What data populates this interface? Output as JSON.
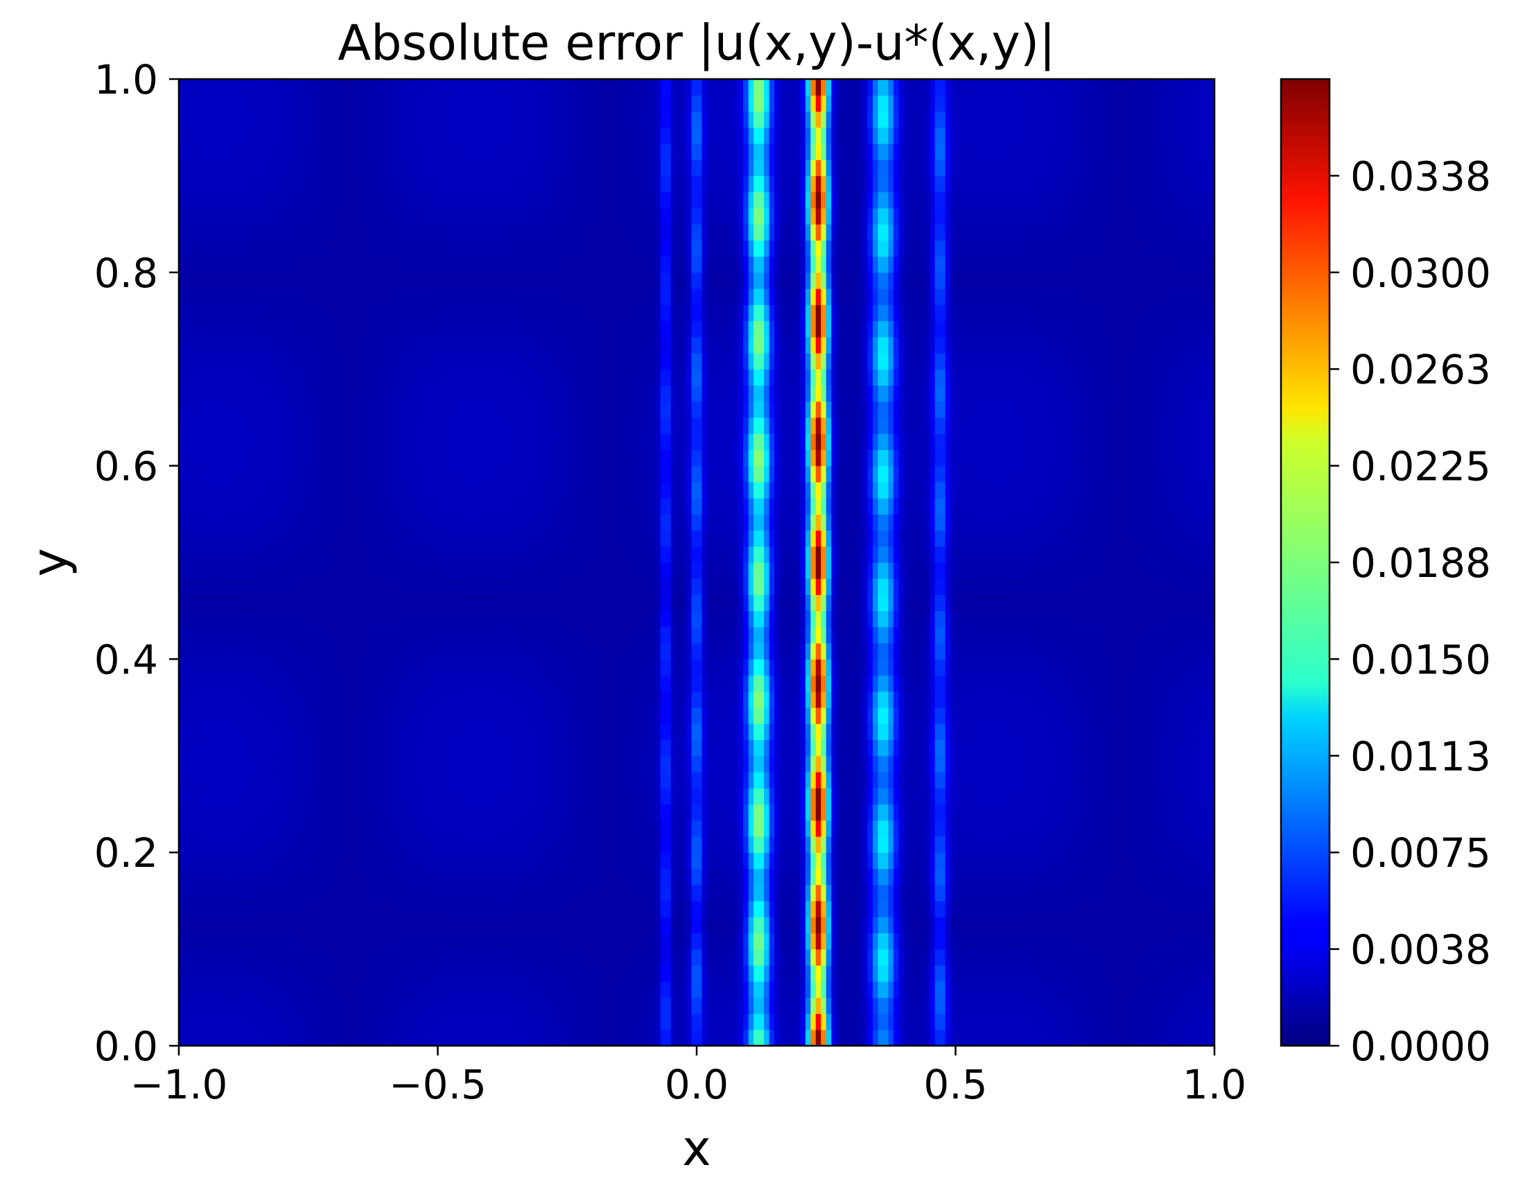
{
  "chart_data": {
    "type": "heatmap",
    "title": "Absolute error |u(x,y)-u*(x,y)|",
    "xlabel": "x",
    "ylabel": "y",
    "xlim": [
      -1.0,
      1.0
    ],
    "ylim": [
      0.0,
      1.0
    ],
    "xticks": [
      -1.0,
      -0.5,
      0.0,
      0.5,
      1.0
    ],
    "xtick_labels": [
      "−1.0",
      "−0.5",
      "0.0",
      "0.5",
      "1.0"
    ],
    "yticks": [
      0.0,
      0.2,
      0.4,
      0.6,
      0.8,
      1.0
    ],
    "ytick_labels": [
      "0.0",
      "0.2",
      "0.4",
      "0.6",
      "0.8",
      "1.0"
    ],
    "colormap": "jet",
    "colorbar": {
      "vmin": 0.0,
      "vmax": 0.0375,
      "ticks": [
        0.0,
        0.00375,
        0.0075,
        0.01125,
        0.015,
        0.01875,
        0.0225,
        0.02625,
        0.03,
        0.03375
      ],
      "tick_labels": [
        "0.0000",
        "0.0038",
        "0.0075",
        "0.0113",
        "0.0150",
        "0.0188",
        "0.0225",
        "0.0263",
        "0.0300",
        "0.0338"
      ]
    },
    "features": {
      "background_error": 0.0025,
      "vertical_bands": [
        {
          "x": 0.235,
          "peak": 0.0365,
          "width": 0.018
        },
        {
          "x": 0.12,
          "peak": 0.0175,
          "width": 0.022
        },
        {
          "x": 0.36,
          "peak": 0.0125,
          "width": 0.025
        },
        {
          "x": 0.0,
          "peak": 0.007,
          "width": 0.012
        },
        {
          "x": 0.47,
          "peak": 0.007,
          "width": 0.015
        },
        {
          "x": -0.06,
          "peak": 0.0055,
          "width": 0.01
        }
      ]
    }
  }
}
